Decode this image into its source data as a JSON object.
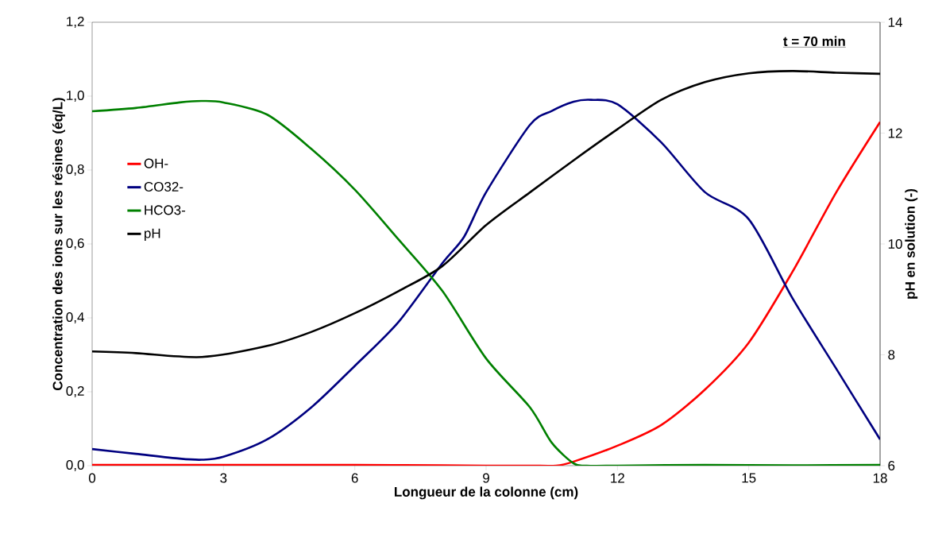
{
  "chart_data": {
    "type": "line",
    "xlabel": "Longueur de la colonne (cm)",
    "ylabel": "Concentration des ions sur les résines (éq/L)",
    "y2label": "pH en solution (-)",
    "annotations": [
      "t = 70 min"
    ],
    "xlim": [
      0,
      18
    ],
    "xticks": [
      0,
      3,
      6,
      9,
      12,
      15,
      18
    ],
    "ylim": [
      0,
      1.2
    ],
    "yticks": [
      {
        "value": 0,
        "label": "0,0"
      },
      {
        "value": 0.2,
        "label": "0,2"
      },
      {
        "value": 0.4,
        "label": "0,4"
      },
      {
        "value": 0.6,
        "label": "0,6"
      },
      {
        "value": 0.8,
        "label": "0,8"
      },
      {
        "value": 1.0,
        "label": "1,0"
      },
      {
        "value": 1.2,
        "label": "1,2"
      }
    ],
    "y2lim": [
      6,
      14
    ],
    "y2ticks": [
      6,
      8,
      10,
      12,
      14
    ],
    "legend": "left",
    "grid": false,
    "marker": "none",
    "line_style": "solid",
    "series": [
      {
        "name": "OH-",
        "color": "#ff0000",
        "x": [
          0,
          2,
          4,
          6,
          8,
          9,
          10,
          10.6,
          11,
          12,
          13,
          14,
          15,
          16,
          17,
          18
        ],
        "values": [
          0.002,
          0.002,
          0.002,
          0.002,
          0.001,
          0,
          0,
          0,
          0.011,
          0.054,
          0.11,
          0.206,
          0.333,
          0.525,
          0.74,
          0.93
        ]
      },
      {
        "name": "CO32-",
        "color": "#000080",
        "x": [
          0,
          1,
          2,
          2.5,
          3,
          4,
          5,
          6,
          7,
          8,
          8.5,
          9,
          10,
          10.5,
          11,
          11.4,
          12,
          13,
          14,
          15,
          16,
          17,
          18
        ],
        "values": [
          0.045,
          0.032,
          0.019,
          0.016,
          0.024,
          0.071,
          0.157,
          0.27,
          0.389,
          0.548,
          0.62,
          0.74,
          0.922,
          0.96,
          0.985,
          0.99,
          0.978,
          0.875,
          0.74,
          0.667,
          0.453,
          0.262,
          0.071
        ]
      },
      {
        "name": "HCO3-",
        "color": "#008000",
        "x": [
          0,
          1,
          2,
          2.5,
          3,
          4,
          5,
          6,
          7,
          8,
          9,
          10,
          10.5,
          11,
          11.3,
          12,
          14,
          16,
          18
        ],
        "values": [
          0.959,
          0.968,
          0.983,
          0.987,
          0.983,
          0.95,
          0.858,
          0.747,
          0.612,
          0.473,
          0.29,
          0.158,
          0.062,
          0.006,
          0,
          0,
          0.002,
          0.001,
          0.002
        ]
      },
      {
        "name": "pH",
        "color": "#000000",
        "axis": "y2",
        "x": [
          0,
          1,
          2.5,
          4,
          5,
          6,
          7,
          8,
          9,
          10,
          11,
          12,
          13,
          14,
          15,
          16,
          17,
          18
        ],
        "values": [
          8.06,
          8.03,
          7.96,
          8.16,
          8.41,
          8.75,
          9.15,
          9.6,
          10.34,
          10.93,
          11.51,
          12.07,
          12.6,
          12.92,
          13.08,
          13.12,
          13.09,
          13.07
        ]
      }
    ]
  }
}
